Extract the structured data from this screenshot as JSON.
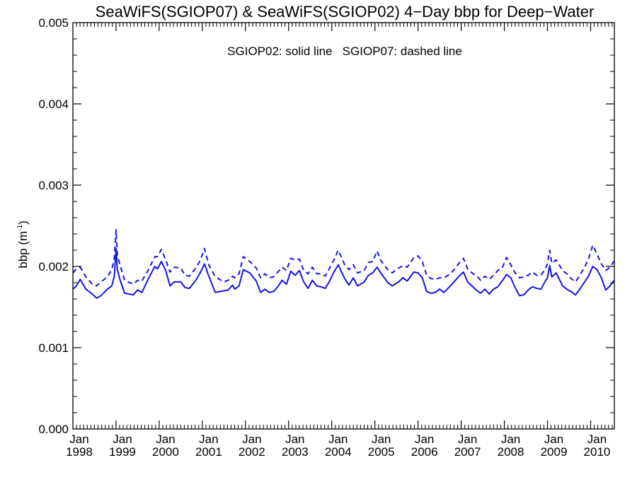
{
  "chart_data": {
    "type": "line",
    "title": "SeaWiFS(SGIOP07) & SeaWiFS(SGIOP02) 4−Day bbp for Deep−Water",
    "annotation": "SGIOP02: solid line   SGIOP07: dashed line",
    "ylabel_main": "bbp (m",
    "ylabel_sup": "-1",
    "ylabel_close": ")",
    "ylim": [
      0,
      0.005
    ],
    "yticks": [
      "0.000",
      "0.001",
      "0.002",
      "0.003",
      "0.004",
      "0.005"
    ],
    "xlim": [
      1998.0,
      2010.55
    ],
    "xticks": [
      {
        "top": "Jan",
        "bottom": "1998"
      },
      {
        "top": "Jan",
        "bottom": "1999"
      },
      {
        "top": "Jan",
        "bottom": "2000"
      },
      {
        "top": "Jan",
        "bottom": "2001"
      },
      {
        "top": "Jan",
        "bottom": "2002"
      },
      {
        "top": "Jan",
        "bottom": "2003"
      },
      {
        "top": "Jan",
        "bottom": "2004"
      },
      {
        "top": "Jan",
        "bottom": "2005"
      },
      {
        "top": "Jan",
        "bottom": "2006"
      },
      {
        "top": "Jan",
        "bottom": "2007"
      },
      {
        "top": "Jan",
        "bottom": "2008"
      },
      {
        "top": "Jan",
        "bottom": "2009"
      },
      {
        "top": "Jan",
        "bottom": "2010"
      }
    ],
    "line_color": "#1414e6",
    "series": [
      {
        "style": "solid",
        "x": [
          1998.0,
          1998.08,
          1998.17,
          1998.3,
          1998.45,
          1998.55,
          1998.65,
          1998.8,
          1998.9,
          1998.96,
          1999.0,
          1999.03,
          1999.1,
          1999.2,
          1999.4,
          1999.5,
          1999.6,
          1999.75,
          1999.9,
          1999.96,
          2000.05,
          2000.15,
          2000.25,
          2000.35,
          2000.5,
          2000.6,
          2000.7,
          2000.85,
          2000.95,
          2001.05,
          2001.15,
          2001.3,
          2001.5,
          2001.6,
          2001.7,
          2001.75,
          2001.85,
          2001.95,
          2002.1,
          2002.25,
          2002.35,
          2002.45,
          2002.55,
          2002.65,
          2002.75,
          2002.85,
          2002.95,
          2003.05,
          2003.15,
          2003.25,
          2003.35,
          2003.45,
          2003.55,
          2003.65,
          2003.75,
          2003.85,
          2003.95,
          2004.05,
          2004.15,
          2004.3,
          2004.4,
          2004.5,
          2004.6,
          2004.75,
          2004.85,
          2004.95,
          2005.05,
          2005.15,
          2005.3,
          2005.4,
          2005.55,
          2005.65,
          2005.75,
          2005.9,
          2006.0,
          2006.1,
          2006.2,
          2006.3,
          2006.4,
          2006.5,
          2006.6,
          2006.75,
          2006.85,
          2006.95,
          2007.05,
          2007.15,
          2007.25,
          2007.35,
          2007.45,
          2007.55,
          2007.65,
          2007.75,
          2007.85,
          2007.95,
          2008.05,
          2008.15,
          2008.25,
          2008.35,
          2008.45,
          2008.55,
          2008.65,
          2008.75,
          2008.85,
          2008.95,
          2009.0,
          2009.05,
          2009.1,
          2009.2,
          2009.35,
          2009.45,
          2009.55,
          2009.65,
          2009.75,
          2009.85,
          2009.95,
          2010.05,
          2010.15,
          2010.25,
          2010.35,
          2010.45,
          2010.55
        ],
        "y": [
          0.00172,
          0.00176,
          0.00184,
          0.00172,
          0.00166,
          0.00161,
          0.00164,
          0.00172,
          0.00176,
          0.00188,
          0.00222,
          0.00196,
          0.00182,
          0.00167,
          0.00165,
          0.00171,
          0.00168,
          0.00185,
          0.002,
          0.00197,
          0.00206,
          0.00195,
          0.00176,
          0.00181,
          0.00181,
          0.00174,
          0.00173,
          0.00183,
          0.00192,
          0.00203,
          0.00188,
          0.00168,
          0.0017,
          0.00171,
          0.00177,
          0.00172,
          0.00176,
          0.00196,
          0.00192,
          0.00182,
          0.00168,
          0.00172,
          0.00168,
          0.00169,
          0.00175,
          0.00183,
          0.00178,
          0.00194,
          0.00189,
          0.00195,
          0.00181,
          0.00173,
          0.00183,
          0.00176,
          0.00175,
          0.00173,
          0.00182,
          0.00193,
          0.00202,
          0.00185,
          0.00177,
          0.00186,
          0.00176,
          0.00181,
          0.00189,
          0.00192,
          0.00199,
          0.00191,
          0.0018,
          0.00176,
          0.00181,
          0.00186,
          0.00182,
          0.00193,
          0.00192,
          0.00186,
          0.00169,
          0.00167,
          0.00168,
          0.00172,
          0.00168,
          0.00176,
          0.00182,
          0.00188,
          0.00193,
          0.00181,
          0.00176,
          0.00171,
          0.00167,
          0.00172,
          0.00166,
          0.00172,
          0.00175,
          0.00182,
          0.0019,
          0.00186,
          0.00174,
          0.00164,
          0.00165,
          0.00171,
          0.00175,
          0.00173,
          0.00172,
          0.00182,
          0.00186,
          0.00201,
          0.00187,
          0.00192,
          0.00176,
          0.00172,
          0.00169,
          0.00165,
          0.00172,
          0.0018,
          0.00188,
          0.002,
          0.00196,
          0.00186,
          0.00171,
          0.00176,
          0.00183
        ]
      },
      {
        "style": "dashed",
        "x": [
          1998.0,
          1998.08,
          1998.17,
          1998.3,
          1998.45,
          1998.55,
          1998.65,
          1998.8,
          1998.9,
          1998.96,
          1999.0,
          1999.03,
          1999.1,
          1999.2,
          1999.4,
          1999.5,
          1999.6,
          1999.75,
          1999.9,
          1999.96,
          2000.05,
          2000.15,
          2000.25,
          2000.35,
          2000.5,
          2000.6,
          2000.7,
          2000.85,
          2000.95,
          2001.05,
          2001.15,
          2001.3,
          2001.5,
          2001.6,
          2001.7,
          2001.75,
          2001.85,
          2001.95,
          2002.1,
          2002.25,
          2002.35,
          2002.45,
          2002.55,
          2002.65,
          2002.75,
          2002.85,
          2002.95,
          2003.05,
          2003.15,
          2003.25,
          2003.35,
          2003.45,
          2003.55,
          2003.65,
          2003.75,
          2003.85,
          2003.95,
          2004.05,
          2004.15,
          2004.3,
          2004.4,
          2004.5,
          2004.6,
          2004.75,
          2004.85,
          2004.95,
          2005.05,
          2005.15,
          2005.3,
          2005.4,
          2005.55,
          2005.65,
          2005.75,
          2005.9,
          2006.0,
          2006.1,
          2006.2,
          2006.3,
          2006.4,
          2006.5,
          2006.6,
          2006.75,
          2006.85,
          2006.95,
          2007.05,
          2007.15,
          2007.25,
          2007.35,
          2007.45,
          2007.55,
          2007.65,
          2007.75,
          2007.85,
          2007.95,
          2008.05,
          2008.15,
          2008.25,
          2008.35,
          2008.45,
          2008.55,
          2008.65,
          2008.75,
          2008.85,
          2008.95,
          2009.0,
          2009.05,
          2009.1,
          2009.2,
          2009.35,
          2009.45,
          2009.55,
          2009.65,
          2009.75,
          2009.85,
          2009.95,
          2010.05,
          2010.15,
          2010.25,
          2010.35,
          2010.45,
          2010.55
        ],
        "y": [
          0.00192,
          0.00197,
          0.00199,
          0.00187,
          0.00178,
          0.00176,
          0.00181,
          0.00187,
          0.00196,
          0.0021,
          0.00245,
          0.00214,
          0.002,
          0.00183,
          0.00178,
          0.00183,
          0.00182,
          0.00196,
          0.00212,
          0.00212,
          0.00221,
          0.00208,
          0.00193,
          0.00199,
          0.00198,
          0.00189,
          0.00188,
          0.00198,
          0.00207,
          0.00222,
          0.00202,
          0.00187,
          0.00181,
          0.00183,
          0.00188,
          0.00186,
          0.00191,
          0.00212,
          0.00206,
          0.00198,
          0.00186,
          0.00191,
          0.00186,
          0.00187,
          0.00193,
          0.00199,
          0.00195,
          0.0021,
          0.00208,
          0.00209,
          0.00195,
          0.00191,
          0.00199,
          0.00191,
          0.00191,
          0.00188,
          0.00198,
          0.00208,
          0.0022,
          0.00202,
          0.00196,
          0.00202,
          0.00192,
          0.00195,
          0.00205,
          0.00206,
          0.00219,
          0.00206,
          0.00196,
          0.00192,
          0.00198,
          0.00201,
          0.00199,
          0.00211,
          0.00213,
          0.00206,
          0.00189,
          0.00185,
          0.00184,
          0.00186,
          0.00186,
          0.00191,
          0.00197,
          0.00204,
          0.0021,
          0.00197,
          0.00192,
          0.00189,
          0.00183,
          0.00188,
          0.00184,
          0.00189,
          0.00195,
          0.00198,
          0.00211,
          0.00202,
          0.00192,
          0.00186,
          0.00187,
          0.00189,
          0.00193,
          0.00189,
          0.00189,
          0.00197,
          0.00203,
          0.0022,
          0.00204,
          0.00208,
          0.00195,
          0.00191,
          0.00185,
          0.00181,
          0.00189,
          0.00198,
          0.00209,
          0.00226,
          0.00215,
          0.00203,
          0.00195,
          0.00199,
          0.00207
        ]
      }
    ]
  }
}
